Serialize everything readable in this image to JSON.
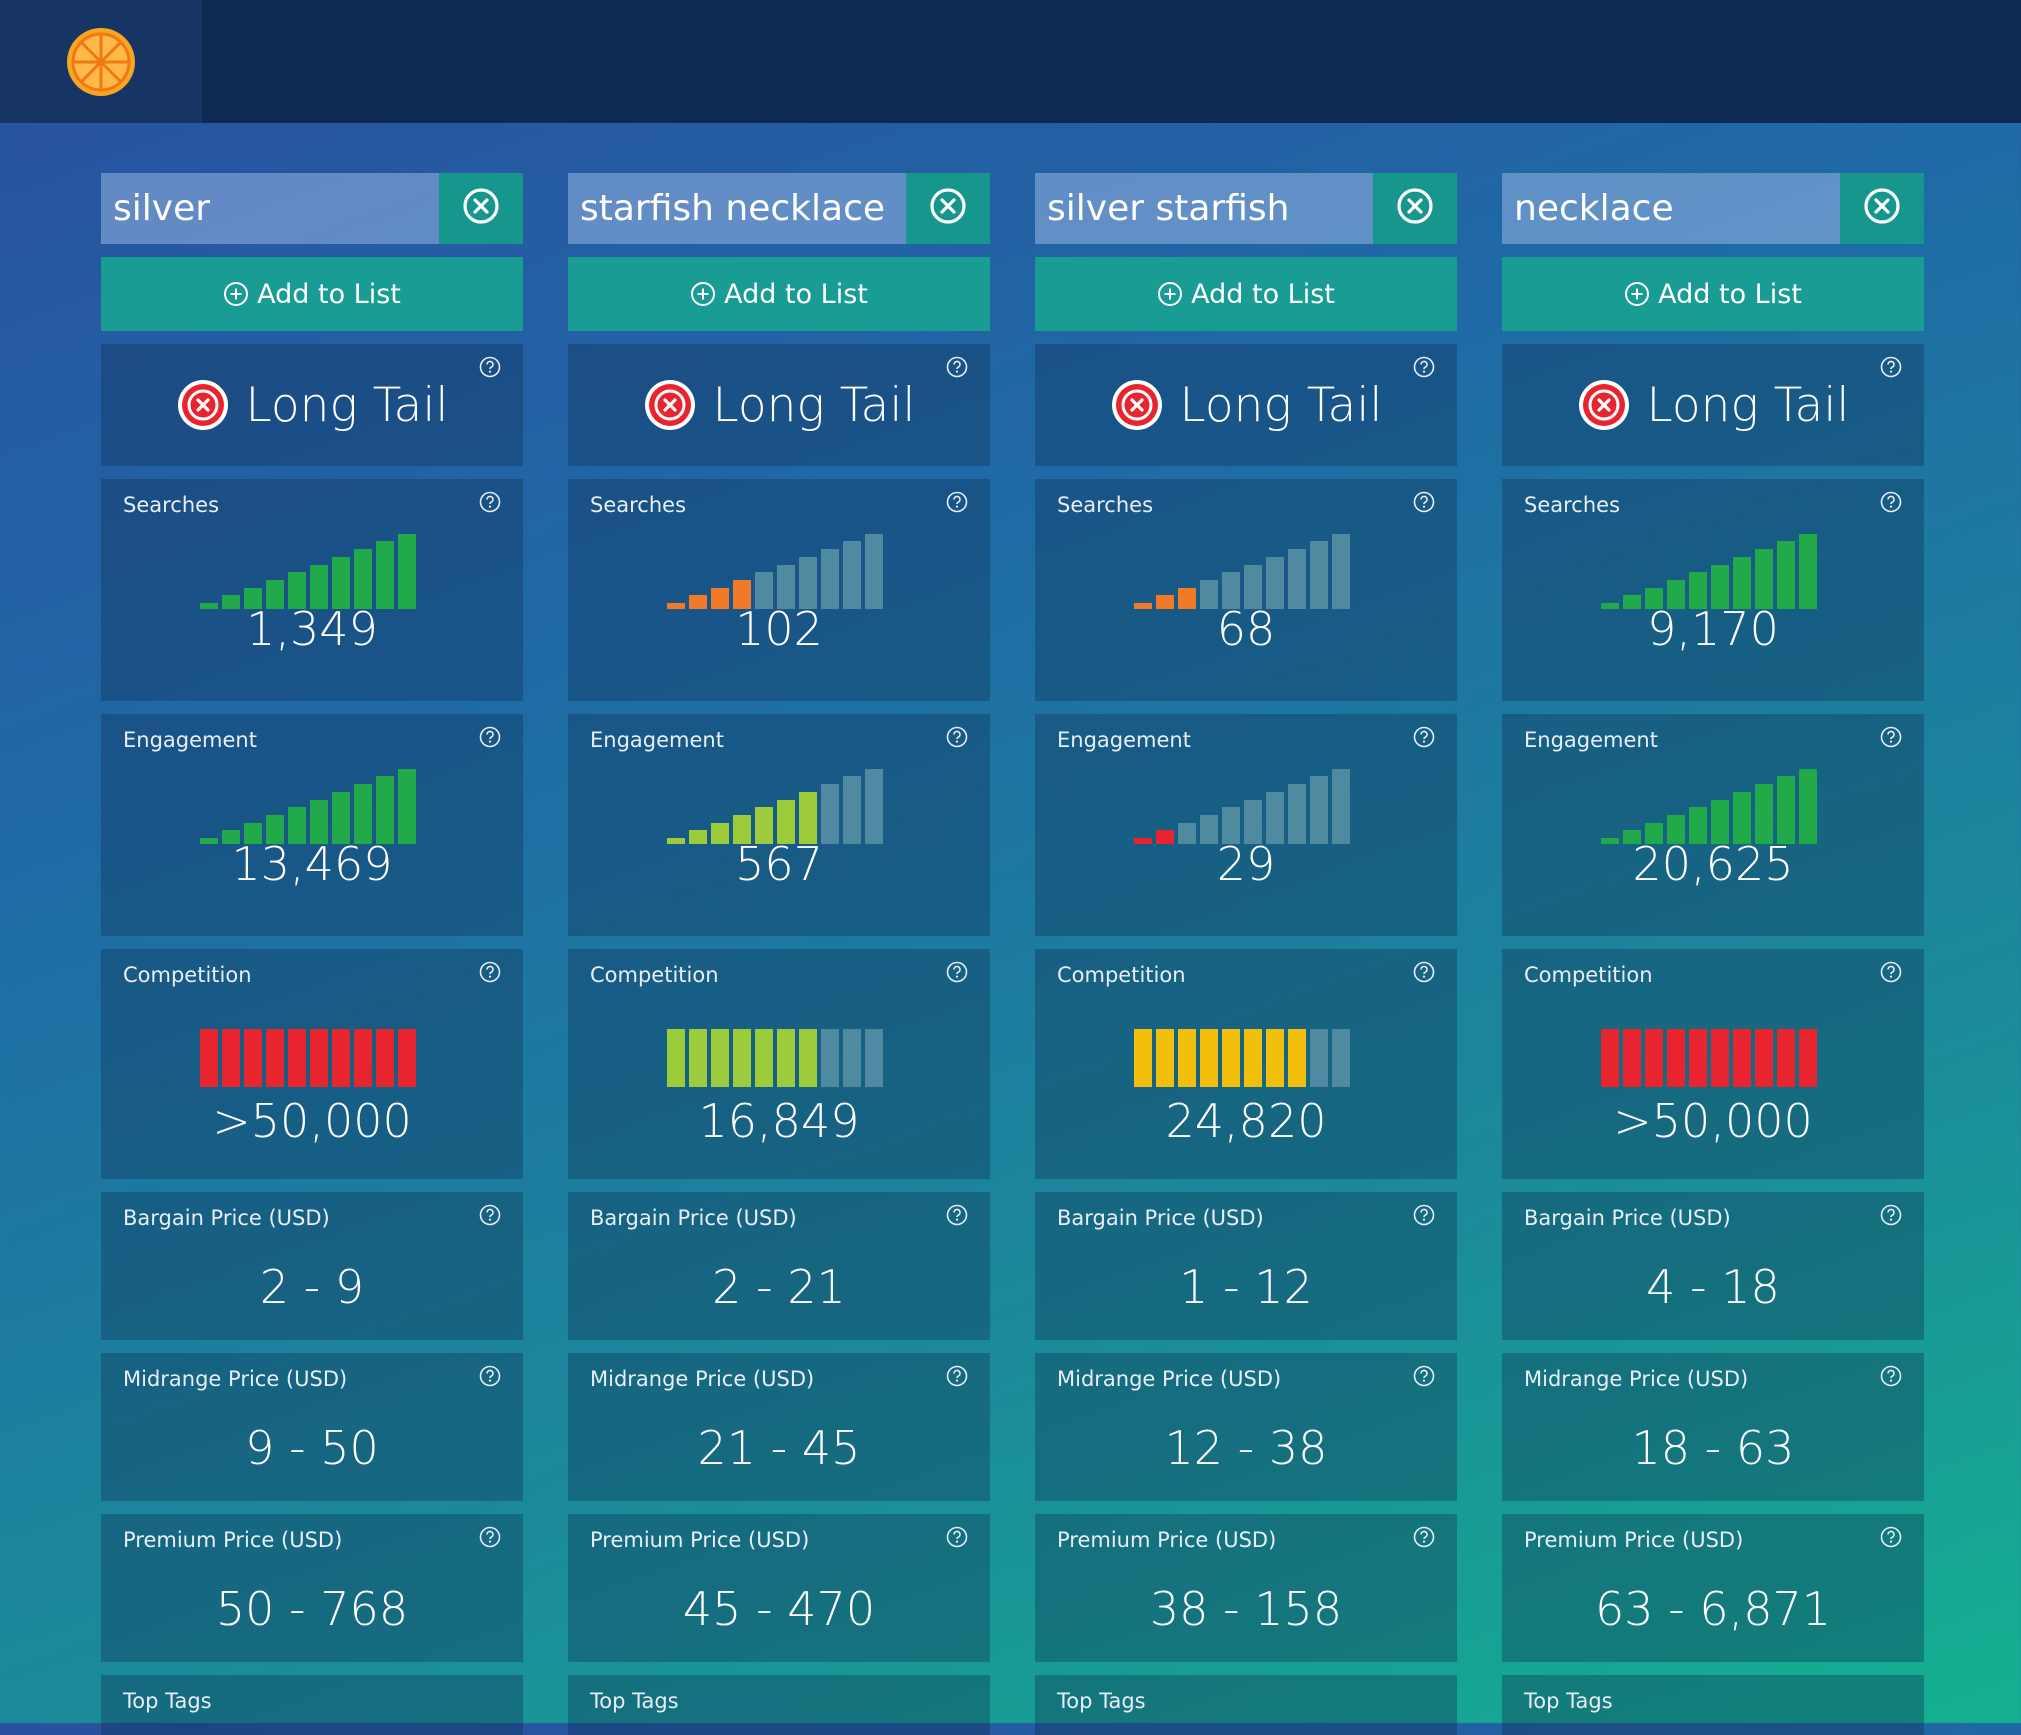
{
  "colors": {
    "green": "#21a94a",
    "orange": "#f07a28",
    "lime": "#9ccc3c",
    "red": "#e8242e",
    "yellow": "#f2c00c",
    "inactive": "#4f8aa0"
  },
  "header": {
    "logo_icon": "orange-slice-icon"
  },
  "labels": {
    "add_to_list": "Add to List",
    "long_tail": "Long Tail",
    "searches": "Searches",
    "engagement": "Engagement",
    "competition": "Competition",
    "bargain": "Bargain Price (USD)",
    "midrange": "Midrange Price (USD)",
    "premium": "Premium Price (USD)",
    "top_tags": "Top Tags"
  },
  "columns": [
    {
      "keyword": "silver",
      "searches": {
        "value": "1,349",
        "level": 10,
        "color": "green"
      },
      "engagement": {
        "value": "13,469",
        "level": 10,
        "color": "green"
      },
      "competition": {
        "value": ">50,000",
        "level": 10,
        "color": "red"
      },
      "bargain": "2 - 9",
      "midrange": "9 - 50",
      "premium": "50 - 768"
    },
    {
      "keyword": "starfish necklace",
      "searches": {
        "value": "102",
        "level": 4,
        "color": "orange"
      },
      "engagement": {
        "value": "567",
        "level": 7,
        "color": "lime"
      },
      "competition": {
        "value": "16,849",
        "level": 7,
        "color": "lime"
      },
      "bargain": "2 - 21",
      "midrange": "21 - 45",
      "premium": "45 - 470"
    },
    {
      "keyword": "silver starfish",
      "searches": {
        "value": "68",
        "level": 3,
        "color": "orange"
      },
      "engagement": {
        "value": "29",
        "level": 2,
        "color": "red"
      },
      "competition": {
        "value": "24,820",
        "level": 8,
        "color": "yellow"
      },
      "bargain": "1 - 12",
      "midrange": "12 - 38",
      "premium": "38 - 158"
    },
    {
      "keyword": "necklace",
      "searches": {
        "value": "9,170",
        "level": 10,
        "color": "green"
      },
      "engagement": {
        "value": "20,625",
        "level": 10,
        "color": "green"
      },
      "competition": {
        "value": ">50,000",
        "level": 10,
        "color": "red"
      },
      "bargain": "4 - 18",
      "midrange": "18 - 63",
      "premium": "63 - 6,871"
    }
  ]
}
